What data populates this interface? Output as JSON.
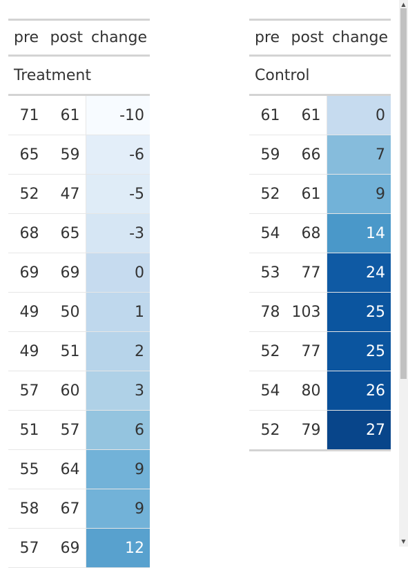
{
  "columns": {
    "pre": "pre",
    "post": "post",
    "change": "change"
  },
  "groups": {
    "treatment": {
      "label": "Treatment",
      "rows": [
        {
          "pre": "71",
          "post": "61",
          "change": "-10",
          "bg": "#f7fbff",
          "fg": "#333333"
        },
        {
          "pre": "65",
          "post": "59",
          "change": "-6",
          "bg": "#e3eef9",
          "fg": "#333333"
        },
        {
          "pre": "52",
          "post": "47",
          "change": "-5",
          "bg": "#dfecf7",
          "fg": "#333333"
        },
        {
          "pre": "68",
          "post": "65",
          "change": "-3",
          "bg": "#d6e6f4",
          "fg": "#333333"
        },
        {
          "pre": "69",
          "post": "69",
          "change": "0",
          "bg": "#c6dbef",
          "fg": "#333333"
        },
        {
          "pre": "49",
          "post": "50",
          "change": "1",
          "bg": "#bfd8ed",
          "fg": "#333333"
        },
        {
          "pre": "49",
          "post": "51",
          "change": "2",
          "bg": "#b7d4ea",
          "fg": "#333333"
        },
        {
          "pre": "57",
          "post": "60",
          "change": "3",
          "bg": "#afd1e7",
          "fg": "#333333"
        },
        {
          "pre": "51",
          "post": "57",
          "change": "6",
          "bg": "#94c4df",
          "fg": "#333333"
        },
        {
          "pre": "55",
          "post": "64",
          "change": "9",
          "bg": "#72b2d8",
          "fg": "#333333"
        },
        {
          "pre": "58",
          "post": "67",
          "change": "9",
          "bg": "#72b2d8",
          "fg": "#333333"
        },
        {
          "pre": "57",
          "post": "69",
          "change": "12",
          "bg": "#58a1ce",
          "fg": "#ffffff"
        }
      ]
    },
    "control": {
      "label": "Control",
      "rows": [
        {
          "pre": "61",
          "post": "61",
          "change": "0",
          "bg": "#c6dbef",
          "fg": "#333333"
        },
        {
          "pre": "59",
          "post": "66",
          "change": "7",
          "bg": "#86bcdc",
          "fg": "#333333"
        },
        {
          "pre": "52",
          "post": "61",
          "change": "9",
          "bg": "#72b2d8",
          "fg": "#333333"
        },
        {
          "pre": "54",
          "post": "68",
          "change": "14",
          "bg": "#4a98c9",
          "fg": "#ffffff"
        },
        {
          "pre": "53",
          "post": "77",
          "change": "24",
          "bg": "#0f5aa4",
          "fg": "#ffffff"
        },
        {
          "pre": "78",
          "post": "103",
          "change": "25",
          "bg": "#0b559f",
          "fg": "#ffffff"
        },
        {
          "pre": "52",
          "post": "77",
          "change": "25",
          "bg": "#0b559f",
          "fg": "#ffffff"
        },
        {
          "pre": "54",
          "post": "80",
          "change": "26",
          "bg": "#084f99",
          "fg": "#ffffff"
        },
        {
          "pre": "52",
          "post": "79",
          "change": "27",
          "bg": "#08458a",
          "fg": "#ffffff"
        }
      ]
    }
  }
}
